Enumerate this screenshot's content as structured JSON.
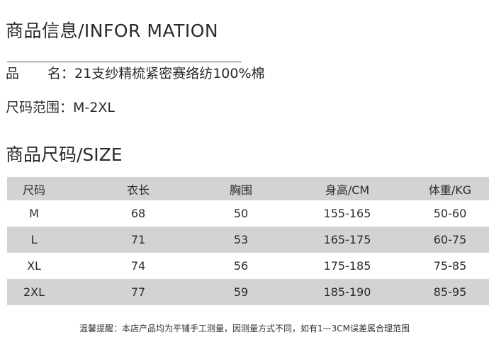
{
  "info_title": "商品信息/INFOR MATION",
  "product_name_label_a": "品",
  "product_name_label_b": "名：",
  "product_name": "21支纱精梳紧密赛络纺100%棉",
  "size_range_label": "尺码范围：",
  "size_range": "M-2XL",
  "size_title": "商品尺码/SIZE",
  "table": {
    "headers": [
      "尺码",
      "衣长",
      "胸围",
      "身高/CM",
      "体重/KG"
    ],
    "rows": [
      [
        "M",
        "68",
        "50",
        "155-165",
        "50-60"
      ],
      [
        "L",
        "71",
        "53",
        "165-175",
        "60-75"
      ],
      [
        "XL",
        "74",
        "56",
        "175-185",
        "75-85"
      ],
      [
        "2XL",
        "77",
        "59",
        "185-190",
        "85-95"
      ]
    ],
    "stripe_color": "#d3d3d3"
  },
  "note": "温馨提醒：本店产品均为平铺手工测量，因测量方式不同，如有1—3CM误差属合理范围"
}
